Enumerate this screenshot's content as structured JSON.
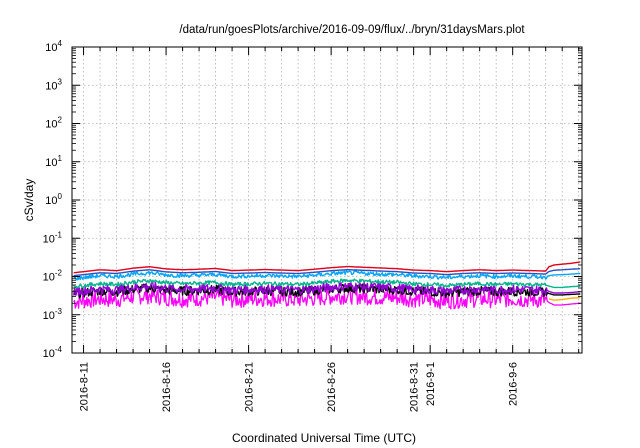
{
  "chart_data": {
    "type": "line",
    "title": "/data/run/goesPlots/archive/2016-09-09/flux/../bryn/31daysMars.plot",
    "xlabel": "Coordinated Universal Time (UTC)",
    "ylabel": "cSv/day",
    "yscale": "log",
    "ylim": [
      0.0001,
      10000
    ],
    "ytick_mantissa": "10",
    "yticks": [
      {
        "exp": "-4"
      },
      {
        "exp": "-3"
      },
      {
        "exp": "-2"
      },
      {
        "exp": "-1"
      },
      {
        "exp": "0"
      },
      {
        "exp": "1"
      },
      {
        "exp": "2"
      },
      {
        "exp": "3"
      },
      {
        "exp": "4"
      }
    ],
    "xticks": [
      {
        "label": "2016-8-11",
        "day": 0
      },
      {
        "label": "2016-8-16",
        "day": 5
      },
      {
        "label": "2016-8-21",
        "day": 10
      },
      {
        "label": "2016-8-26",
        "day": 15
      },
      {
        "label": "2016-8-31",
        "day": 20
      },
      {
        "label": "2016-9-1",
        "day": 21
      },
      {
        "label": "2016-9-6",
        "day": 26
      }
    ],
    "x_range_days": [
      -0.7,
      30.2
    ],
    "grid": true,
    "series": [
      {
        "color": "#ff00ff",
        "x": [
          -0.6,
          1,
          2,
          3,
          4,
          5,
          6,
          7,
          8,
          9,
          10,
          11,
          12,
          13,
          14,
          15,
          16,
          17,
          18,
          19,
          20,
          21,
          22,
          23,
          24,
          25,
          26,
          27,
          28,
          28.2,
          28.5,
          29,
          29.5,
          30.1
        ],
        "y": [
          0.0022,
          0.0026,
          0.0025,
          0.003,
          0.0032,
          0.0028,
          0.0026,
          0.0027,
          0.0029,
          0.0025,
          0.0026,
          0.0027,
          0.0026,
          0.0025,
          0.0027,
          0.003,
          0.0032,
          0.003,
          0.0029,
          0.0028,
          0.0026,
          0.0025,
          0.0023,
          0.0025,
          0.0026,
          0.0025,
          0.0026,
          0.0025,
          0.0024,
          0.0021,
          0.0018,
          0.0018,
          0.0019,
          0.002
        ]
      },
      {
        "color": "#ffb000",
        "x": [
          28.2,
          28.5,
          29,
          29.5,
          30.1
        ],
        "y": [
          0.0026,
          0.0024,
          0.0025,
          0.0027,
          0.0028
        ]
      },
      {
        "color": "#000000",
        "x": [
          -0.6,
          1,
          2,
          3,
          4,
          5,
          6,
          7,
          8,
          9,
          10,
          11,
          12,
          13,
          14,
          15,
          16,
          17,
          18,
          19,
          20,
          21,
          22,
          23,
          24,
          25,
          26,
          27,
          28,
          28.2,
          28.5,
          29,
          29.5,
          30.1
        ],
        "y": [
          0.0035,
          0.0042,
          0.004,
          0.0046,
          0.005,
          0.0044,
          0.0042,
          0.0043,
          0.0045,
          0.004,
          0.0041,
          0.0042,
          0.0041,
          0.004,
          0.0043,
          0.0047,
          0.005,
          0.0048,
          0.0046,
          0.0045,
          0.0041,
          0.004,
          0.0037,
          0.004,
          0.0042,
          0.004,
          0.0041,
          0.004,
          0.0039,
          0.0036,
          0.0033,
          0.0033,
          0.0034,
          0.0035
        ]
      },
      {
        "color": "#9400d3",
        "x": [
          -0.6,
          1,
          2,
          3,
          4,
          5,
          6,
          7,
          8,
          9,
          10,
          11,
          12,
          13,
          14,
          15,
          16,
          17,
          18,
          19,
          20,
          21,
          22,
          23,
          24,
          25,
          26,
          27,
          28,
          28.2,
          28.5,
          29,
          29.5,
          30.1
        ],
        "y": [
          0.004,
          0.0047,
          0.0045,
          0.0052,
          0.0056,
          0.005,
          0.0047,
          0.0048,
          0.0051,
          0.0045,
          0.0046,
          0.0047,
          0.0046,
          0.0045,
          0.0048,
          0.0053,
          0.0056,
          0.0054,
          0.0052,
          0.005,
          0.0046,
          0.0045,
          0.0042,
          0.0045,
          0.0047,
          0.0045,
          0.0046,
          0.0045,
          0.0044,
          0.0041,
          0.0037,
          0.0037,
          0.0038,
          0.004
        ]
      },
      {
        "color": "#00b48c",
        "x": [
          -0.6,
          1,
          2,
          3,
          4,
          5,
          6,
          7,
          8,
          9,
          10,
          11,
          12,
          13,
          14,
          15,
          16,
          17,
          18,
          19,
          20,
          21,
          22,
          23,
          24,
          25,
          26,
          27,
          28,
          28.2,
          28.5,
          29,
          29.5,
          30.1
        ],
        "y": [
          0.0055,
          0.0065,
          0.0062,
          0.0072,
          0.0078,
          0.0069,
          0.0065,
          0.0067,
          0.007,
          0.0062,
          0.0064,
          0.0066,
          0.0064,
          0.0062,
          0.0067,
          0.0074,
          0.0079,
          0.0076,
          0.0073,
          0.007,
          0.0064,
          0.0062,
          0.0058,
          0.0062,
          0.0065,
          0.0062,
          0.0064,
          0.0062,
          0.006,
          0.0056,
          0.0052,
          0.0052,
          0.0054,
          0.0056
        ]
      },
      {
        "color": "#00a6ff",
        "x": [
          -0.6,
          1,
          2,
          3,
          4,
          5,
          6,
          7,
          8,
          9,
          10,
          11,
          12,
          13,
          14,
          15,
          16,
          17,
          18,
          19,
          20,
          21,
          22,
          23,
          24,
          25,
          26,
          27,
          28,
          28.2,
          28.5,
          29,
          29.5,
          30.1
        ],
        "y": [
          0.0088,
          0.0105,
          0.01,
          0.0115,
          0.0125,
          0.011,
          0.0105,
          0.0108,
          0.0113,
          0.01,
          0.0103,
          0.0106,
          0.0103,
          0.01,
          0.0108,
          0.0118,
          0.0126,
          0.0121,
          0.0116,
          0.0112,
          0.0103,
          0.01,
          0.0094,
          0.01,
          0.0105,
          0.01,
          0.0103,
          0.01,
          0.0097,
          0.0105,
          0.011,
          0.0112,
          0.0115,
          0.012
        ]
      },
      {
        "color": "#2a52be",
        "x": [
          -0.6,
          1,
          2,
          3,
          4,
          5,
          6,
          7,
          8,
          9,
          10,
          11,
          12,
          13,
          14,
          15,
          16,
          17,
          18,
          19,
          20,
          21,
          22,
          23,
          24,
          25,
          26,
          27,
          28,
          28.2,
          28.5,
          29,
          29.5,
          30.1
        ],
        "y": [
          0.0105,
          0.0125,
          0.012,
          0.0138,
          0.015,
          0.0132,
          0.0125,
          0.0129,
          0.0135,
          0.012,
          0.0123,
          0.0127,
          0.0123,
          0.012,
          0.0129,
          0.0142,
          0.0151,
          0.0145,
          0.0139,
          0.0134,
          0.0123,
          0.012,
          0.0112,
          0.012,
          0.0125,
          0.012,
          0.0123,
          0.012,
          0.0116,
          0.0135,
          0.0145,
          0.015,
          0.0155,
          0.016
        ]
      },
      {
        "color": "#e0001a",
        "x": [
          -0.6,
          1,
          2,
          3,
          4,
          5,
          6,
          7,
          8,
          9,
          10,
          11,
          12,
          13,
          14,
          15,
          16,
          17,
          18,
          19,
          20,
          21,
          22,
          23,
          24,
          25,
          26,
          27,
          28,
          28.2,
          28.5,
          29,
          29.5,
          30.1
        ],
        "y": [
          0.0125,
          0.015,
          0.0142,
          0.0165,
          0.018,
          0.0158,
          0.015,
          0.0155,
          0.0162,
          0.0143,
          0.0147,
          0.0152,
          0.0147,
          0.0143,
          0.0155,
          0.017,
          0.0182,
          0.0174,
          0.0167,
          0.016,
          0.0147,
          0.0143,
          0.0134,
          0.0143,
          0.015,
          0.0143,
          0.0147,
          0.0143,
          0.0139,
          0.018,
          0.02,
          0.021,
          0.022,
          0.024
        ]
      }
    ]
  }
}
